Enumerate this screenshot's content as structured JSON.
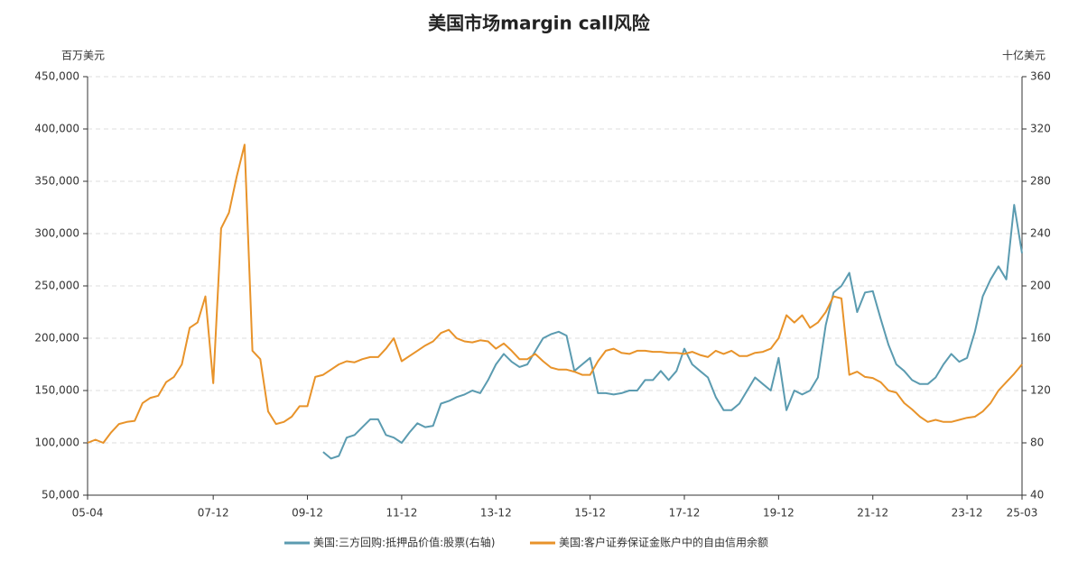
{
  "chart_data": {
    "type": "line",
    "title": "美国市场margin call风险",
    "y_label": "百万美元",
    "y2_label": "十亿美元",
    "categories": [
      "05-04",
      null,
      null,
      null,
      null,
      null,
      null,
      null,
      null,
      null,
      null,
      null,
      null,
      null,
      null,
      null,
      "07-12",
      null,
      null,
      null,
      null,
      null,
      null,
      null,
      null,
      null,
      null,
      null,
      "09-12",
      null,
      null,
      null,
      null,
      null,
      null,
      null,
      null,
      null,
      null,
      null,
      "11-12",
      null,
      null,
      null,
      null,
      null,
      null,
      null,
      null,
      null,
      null,
      null,
      "13-12",
      null,
      null,
      null,
      null,
      null,
      null,
      null,
      null,
      null,
      null,
      null,
      "15-12",
      null,
      null,
      null,
      null,
      null,
      null,
      null,
      null,
      null,
      null,
      null,
      "17-12",
      null,
      null,
      null,
      null,
      null,
      null,
      null,
      null,
      null,
      null,
      null,
      "19-12",
      null,
      null,
      null,
      null,
      null,
      null,
      null,
      null,
      null,
      null,
      null,
      "21-12",
      null,
      null,
      null,
      null,
      null,
      null,
      null,
      null,
      null,
      null,
      null,
      "23-12",
      null,
      null,
      null,
      null,
      null,
      null,
      "25-03"
    ],
    "series": [
      {
        "name": "美国:三方回购:抵押品价值:股票(右轴)",
        "color": "#5b9bb0",
        "axis": "y2",
        "values": [
          null,
          null,
          null,
          null,
          null,
          null,
          null,
          null,
          null,
          null,
          null,
          null,
          null,
          null,
          null,
          null,
          null,
          null,
          null,
          null,
          null,
          null,
          null,
          null,
          null,
          null,
          null,
          null,
          null,
          null,
          73,
          68,
          70,
          84,
          86,
          92,
          98,
          98,
          86,
          84,
          80,
          88,
          95,
          92,
          93,
          110,
          112,
          115,
          117,
          120,
          118,
          128,
          140,
          148,
          142,
          138,
          140,
          150,
          160,
          163,
          165,
          162,
          135,
          140,
          145,
          118,
          118,
          117,
          118,
          120,
          120,
          128,
          128,
          135,
          128,
          135,
          152,
          140,
          135,
          130,
          115,
          105,
          105,
          110,
          120,
          130,
          125,
          120,
          145,
          105,
          120,
          117,
          120,
          130,
          170,
          195,
          200,
          210,
          180,
          195,
          196,
          175,
          155,
          140,
          135,
          128,
          125,
          125,
          130,
          140,
          148,
          142,
          145,
          165,
          192,
          205,
          215,
          205,
          262,
          225
        ]
      },
      {
        "name": "美国:客户证券保证金账户中的自由信用余额",
        "color": "#e8932a",
        "values": [
          100000,
          103000,
          100000,
          110000,
          118000,
          120000,
          121000,
          138000,
          143000,
          145000,
          158000,
          163000,
          175000,
          210000,
          215000,
          240000,
          157000,
          305000,
          320000,
          355000,
          385000,
          188000,
          180000,
          130000,
          118000,
          120000,
          125000,
          135000,
          135000,
          163000,
          165000,
          170000,
          175000,
          178000,
          177000,
          180000,
          182000,
          182000,
          190000,
          200000,
          178000,
          183000,
          188000,
          193000,
          197000,
          205000,
          208000,
          200000,
          197000,
          196000,
          198000,
          197000,
          190000,
          195000,
          188000,
          180000,
          180000,
          185000,
          178000,
          172000,
          170000,
          170000,
          168000,
          165000,
          165000,
          178000,
          188000,
          190000,
          186000,
          185000,
          188000,
          188000,
          187000,
          187000,
          186000,
          186000,
          185000,
          187000,
          184000,
          182000,
          188000,
          185000,
          188000,
          183000,
          183000,
          186000,
          187000,
          190000,
          200000,
          222000,
          215000,
          222000,
          210000,
          215000,
          225000,
          240000,
          238000,
          165000,
          168000,
          163000,
          162000,
          158000,
          150000,
          148000,
          138000,
          132000,
          125000,
          120000,
          122000,
          120000,
          120000,
          122000,
          124000,
          125000,
          130000,
          138000,
          150000,
          158000,
          166000,
          175000
        ]
      }
    ],
    "ylim": [
      50000,
      450000
    ],
    "yticks": [
      {
        "value": 50000,
        "label": "50,000"
      },
      {
        "value": 100000,
        "label": "100,000"
      },
      {
        "value": 150000,
        "label": "150,000"
      },
      {
        "value": 200000,
        "label": "200,000"
      },
      {
        "value": 250000,
        "label": "250,000"
      },
      {
        "value": 300000,
        "label": "300,000"
      },
      {
        "value": 350000,
        "label": "350,000"
      },
      {
        "value": 400000,
        "label": "400,000"
      },
      {
        "value": 450000,
        "label": "450,000"
      }
    ],
    "y2lim": [
      40,
      360
    ],
    "y2ticks": [
      40,
      80,
      120,
      160,
      200,
      240,
      280,
      320,
      360
    ],
    "grid": true,
    "legend": "bottom"
  }
}
